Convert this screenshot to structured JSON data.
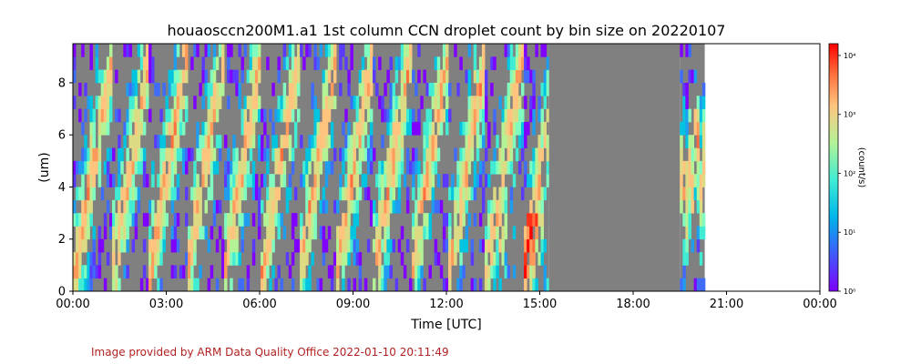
{
  "figure": {
    "title": "houaosccn200M1.a1 1st column CCN droplet count by bin size on 20220107",
    "credit": "Image provided by ARM Data Quality Office 2022-01-10 20:11:49"
  },
  "chart_data": {
    "type": "heatmap",
    "title": "houaosccn200M1.a1 1st column CCN droplet count by bin size on 20220107",
    "xlabel": "Time [UTC]",
    "ylabel": "(um)",
    "colorbar_label": "(count/s)",
    "x_ticks": [
      "00:00",
      "03:00",
      "06:00",
      "09:00",
      "12:00",
      "15:00",
      "18:00",
      "21:00",
      "00:00"
    ],
    "x_range_hours": [
      0,
      24
    ],
    "y_ticks": [
      "0",
      "2",
      "4",
      "6",
      "8"
    ],
    "y_range": [
      0,
      9.5
    ],
    "colorbar_ticks": [
      "10⁰",
      "10¹",
      "10²",
      "10³",
      "10⁴"
    ],
    "colorbar_range_log10": [
      0,
      4.2
    ],
    "colormap": "rainbow",
    "missing_color": "#808080",
    "segments": [
      {
        "start_hour": 0.0,
        "end_hour": 15.3,
        "state": "data",
        "cycle_hours": 1.2
      },
      {
        "start_hour": 15.3,
        "end_hour": 19.5,
        "state": "missing"
      },
      {
        "start_hour": 19.5,
        "end_hour": 20.3,
        "state": "data"
      },
      {
        "start_hour": 20.3,
        "end_hour": 24.0,
        "state": "no_data"
      }
    ]
  }
}
